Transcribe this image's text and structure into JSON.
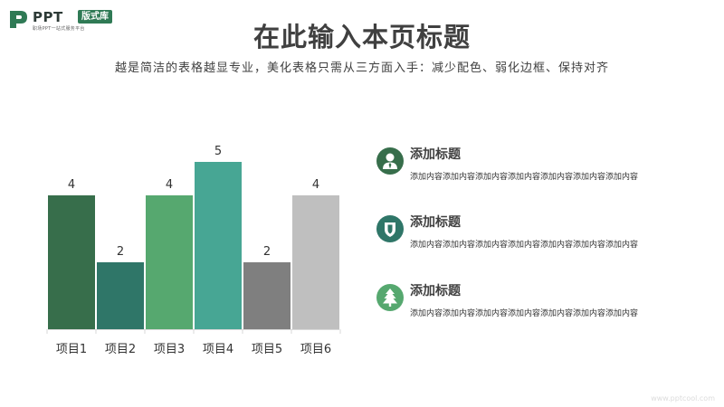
{
  "logo": {
    "word": "PPT",
    "badge": "版式库",
    "tagline": "职场PPT一站式服务平台",
    "brand_color": "#2f7a55"
  },
  "header": {
    "title": "在此输入本页标题",
    "subtitle": "越是简洁的表格越显专业，美化表格只需从三方面入手：减少配色、弱化边框、保持对齐"
  },
  "chart_data": {
    "type": "bar",
    "categories": [
      "项目1",
      "项目2",
      "项目3",
      "项目4",
      "项目5",
      "项目6"
    ],
    "values": [
      4,
      2,
      4,
      5,
      2,
      4
    ],
    "colors": [
      "#376e4b",
      "#2f7668",
      "#56a86f",
      "#47a694",
      "#7f7f7f",
      "#bfbfbf"
    ],
    "data_labels": true,
    "ylim": [
      0,
      5
    ],
    "grid": false,
    "legend": "none"
  },
  "items": [
    {
      "icon": "person-tie-icon",
      "icon_color": "#376e4b",
      "title": "添加标题",
      "body": "添加内容添加内容添加内容添加内容添加内容添加内容添加内容"
    },
    {
      "icon": "shield-icon",
      "icon_color": "#2f7668",
      "title": "添加标题",
      "body": "添加内容添加内容添加内容添加内容添加内容添加内容添加内容"
    },
    {
      "icon": "tree-icon",
      "icon_color": "#56a86f",
      "title": "添加标题",
      "body": "添加内容添加内容添加内容添加内容添加内容添加内容添加内容"
    }
  ],
  "watermark": "www.pptcool.com"
}
